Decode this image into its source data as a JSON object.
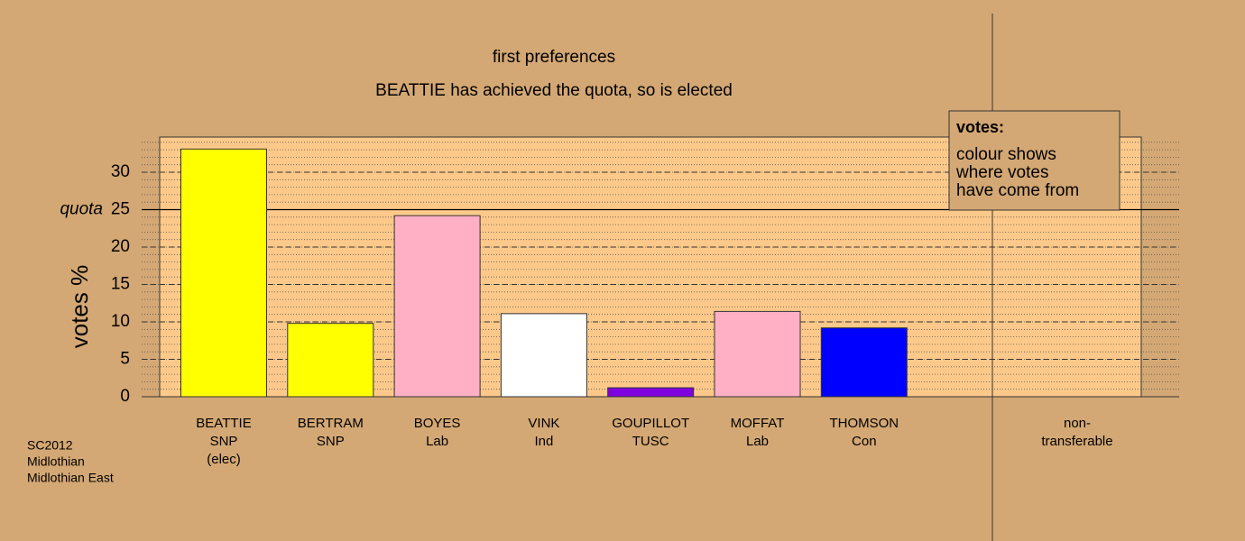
{
  "chart_data": {
    "type": "bar",
    "title": "first preferences",
    "subtitle": "BEATTIE has achieved the quota, so is elected",
    "y_label": "votes %",
    "categories": [
      [
        "BEATTIE",
        "SNP",
        "(elec)"
      ],
      [
        "BERTRAM",
        "SNP"
      ],
      [
        "BOYES",
        "Lab"
      ],
      [
        "VINK",
        "Ind"
      ],
      [
        "GOUPILLOT",
        "TUSC"
      ],
      [
        "MOFFAT",
        "Lab"
      ],
      [
        "THOMSON",
        "Con"
      ],
      [
        "non-",
        "transferable"
      ]
    ],
    "values": [
      33.1,
      9.8,
      24.2,
      11.1,
      1.2,
      11.4,
      9.2,
      0
    ],
    "colors": [
      "#ffff00",
      "#ffff00",
      "#ffb0c4",
      "#ffffff",
      "#8000e0",
      "#ffb0c4",
      "#0000ff",
      "#ffffff"
    ],
    "ylim": [
      0,
      34.7
    ],
    "yticks": [
      0,
      5,
      10,
      15,
      20,
      25,
      30
    ],
    "quota": {
      "value": 25,
      "label": "quota"
    },
    "grid": true,
    "legend": {
      "title": "votes:",
      "lines": [
        "colour shows",
        "where votes",
        "have come from"
      ]
    },
    "footer": [
      "SC2012",
      "Midlothian",
      "Midlothian East"
    ]
  }
}
